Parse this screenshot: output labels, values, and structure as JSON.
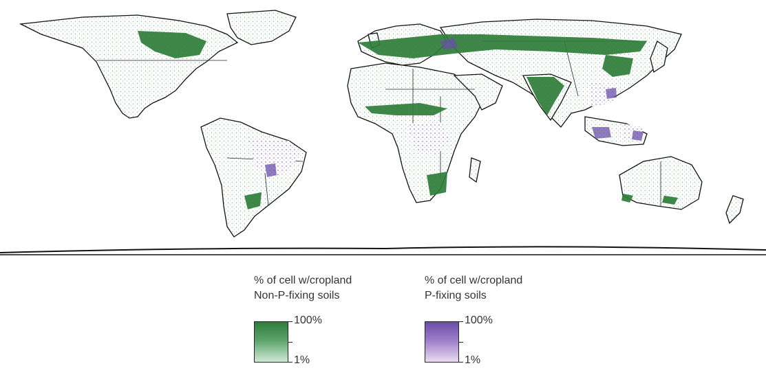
{
  "colors": {
    "ocean": "#ffffff",
    "coast": "#111111",
    "cropland_non_p": "#2e7d3a",
    "cropland_non_p_light": "#e6f3ea",
    "cropland_p": "#6a4fa8",
    "cropland_p_light": "#eadcf0"
  },
  "legend": {
    "non_p": {
      "title_line1": "% of cell w/cropland",
      "title_line2": "Non-P-fixing soils",
      "max_label": "100%",
      "min_label": "1%"
    },
    "p_fixing": {
      "title_line1": "% of cell w/cropland",
      "title_line2": "P-fixing soils",
      "max_label": "100%",
      "min_label": "1%"
    }
  }
}
